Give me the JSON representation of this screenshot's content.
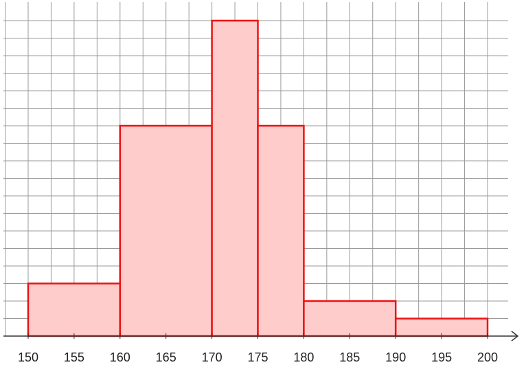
{
  "chart_data": {
    "type": "bar",
    "title": "",
    "xlabel": "",
    "ylabel": "",
    "x_ticks": [
      "150",
      "155",
      "160",
      "165",
      "170",
      "175",
      "180",
      "185",
      "190",
      "195",
      "200"
    ],
    "xlim": [
      150,
      200
    ],
    "ylim": [
      0,
      18
    ],
    "grid": true,
    "bins": [
      {
        "start": 150,
        "end": 160,
        "height": 3
      },
      {
        "start": 160,
        "end": 170,
        "height": 12
      },
      {
        "start": 170,
        "end": 175,
        "height": 18
      },
      {
        "start": 175,
        "end": 180,
        "height": 12
      },
      {
        "start": 180,
        "end": 190,
        "height": 2
      },
      {
        "start": 190,
        "end": 200,
        "height": 1
      }
    ],
    "colors": {
      "bar_fill": "#ffcccc",
      "bar_stroke": "#ee1111",
      "grid": "#999999",
      "axis": "#333333"
    }
  }
}
